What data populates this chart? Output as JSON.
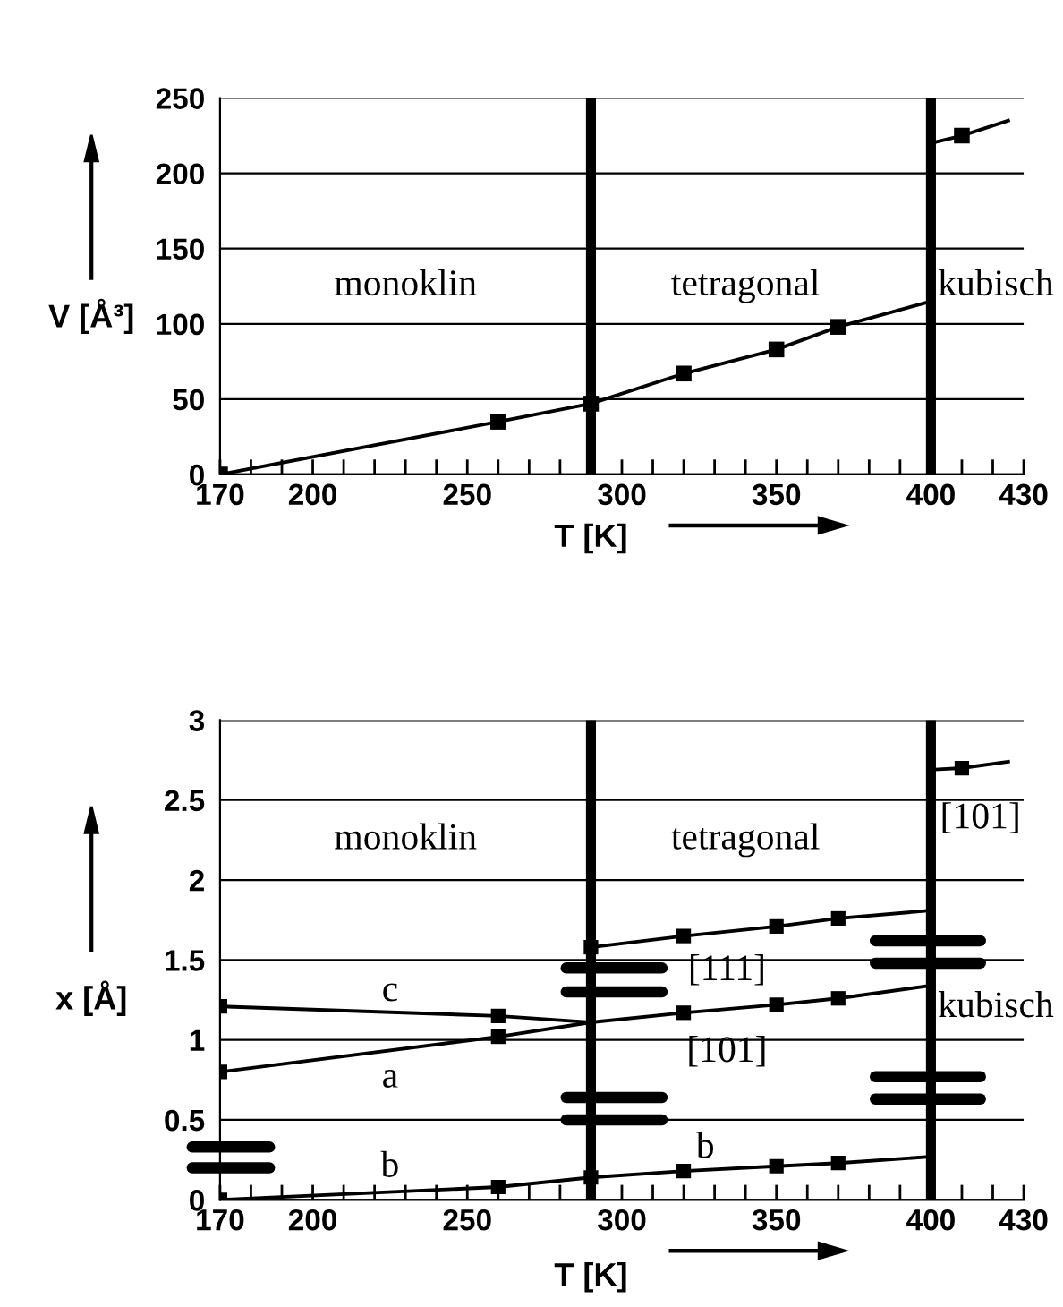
{
  "chart_data": [
    {
      "type": "line",
      "xlabel": "T [K]",
      "ylabel": "V [Å³]",
      "xlim": [
        170,
        430
      ],
      "ylim": [
        0,
        250
      ],
      "xticks": [
        170,
        {
          "value": 180,
          "label": null
        },
        {
          "value": 190,
          "label": null
        },
        200,
        {
          "value": 210,
          "label": null
        },
        {
          "value": 220,
          "label": null
        },
        {
          "value": 230,
          "label": null
        },
        {
          "value": 240,
          "label": null
        },
        250,
        {
          "value": 260,
          "label": null
        },
        {
          "value": 270,
          "label": null
        },
        {
          "value": 280,
          "label": null
        },
        {
          "value": 290,
          "label": null
        },
        300,
        {
          "value": 310,
          "label": null
        },
        {
          "value": 320,
          "label": null
        },
        {
          "value": 330,
          "label": null
        },
        {
          "value": 340,
          "label": null
        },
        350,
        {
          "value": 360,
          "label": null
        },
        {
          "value": 370,
          "label": null
        },
        {
          "value": 380,
          "label": null
        },
        {
          "value": 390,
          "label": null
        },
        400,
        {
          "value": 410,
          "label": null
        },
        {
          "value": 420,
          "label": null
        },
        430
      ],
      "yticks": [
        0,
        50,
        100,
        150,
        200,
        250
      ],
      "grid": "y",
      "marker": "square",
      "series": [
        {
          "marker": "none",
          "color": "#000000",
          "x": [
            170,
            260,
            290,
            320,
            350,
            370,
            400
          ],
          "values": [
            0,
            35,
            47,
            67,
            83,
            98,
            115
          ]
        },
        {
          "marker": "none",
          "color": "#000000",
          "x": [
            400,
            410,
            425
          ],
          "values": [
            220,
            225,
            235
          ]
        },
        {
          "type": "scatter",
          "color": "#000000",
          "x": [
            170,
            260,
            290,
            320,
            350,
            370,
            410
          ],
          "values": [
            0,
            35,
            47,
            67,
            83,
            98,
            225
          ]
        }
      ],
      "ref_lines": [
        {
          "axis": "x",
          "value": 290,
          "color": "#000000"
        },
        {
          "axis": "x",
          "value": 400,
          "color": "#000000"
        }
      ],
      "annotations": [
        "monoklin",
        "tetragonal",
        "kubisch"
      ]
    },
    {
      "type": "line",
      "xlabel": "T [K]",
      "ylabel": "x [Å]",
      "xlim": [
        170,
        430
      ],
      "ylim": [
        0,
        3
      ],
      "xticks": [
        170,
        {
          "value": 180,
          "label": null
        },
        {
          "value": 190,
          "label": null
        },
        200,
        {
          "value": 210,
          "label": null
        },
        {
          "value": 220,
          "label": null
        },
        {
          "value": 230,
          "label": null
        },
        {
          "value": 240,
          "label": null
        },
        250,
        {
          "value": 260,
          "label": null
        },
        {
          "value": 270,
          "label": null
        },
        {
          "value": 280,
          "label": null
        },
        {
          "value": 290,
          "label": null
        },
        300,
        {
          "value": 310,
          "label": null
        },
        {
          "value": 320,
          "label": null
        },
        {
          "value": 330,
          "label": null
        },
        {
          "value": 340,
          "label": null
        },
        350,
        {
          "value": 360,
          "label": null
        },
        {
          "value": 370,
          "label": null
        },
        {
          "value": 380,
          "label": null
        },
        {
          "value": 390,
          "label": null
        },
        400,
        {
          "value": 410,
          "label": null
        },
        {
          "value": 420,
          "label": null
        },
        430
      ],
      "yticks": [
        0,
        0.5,
        1,
        1.5,
        2,
        2.5,
        3
      ],
      "grid": "y",
      "marker": "square",
      "series": [
        {
          "marker": "none",
          "color": "#000000",
          "x": [
            170,
            260,
            290
          ],
          "values": [
            1.21,
            1.15,
            1.11
          ]
        },
        {
          "marker": "none",
          "color": "#000000",
          "x": [
            170,
            260,
            290,
            320,
            350,
            370,
            400
          ],
          "values": [
            0.8,
            1.02,
            1.11,
            1.17,
            1.22,
            1.26,
            1.34
          ]
        },
        {
          "marker": "none",
          "color": "#000000",
          "x": [
            290,
            320,
            350,
            370,
            400
          ],
          "values": [
            1.58,
            1.65,
            1.71,
            1.76,
            1.81
          ]
        },
        {
          "marker": "none",
          "color": "#000000",
          "x": [
            170,
            260,
            290,
            320,
            350,
            370,
            400
          ],
          "values": [
            0,
            0.08,
            0.14,
            0.18,
            0.21,
            0.23,
            0.27
          ]
        },
        {
          "marker": "none",
          "color": "#000000",
          "x": [
            400,
            410,
            425
          ],
          "values": [
            2.69,
            2.7,
            2.74
          ]
        },
        {
          "type": "scatter",
          "color": "#000000",
          "x": [
            170,
            260,
            170,
            260,
            320,
            350,
            370,
            290,
            320,
            350,
            370,
            170,
            260,
            290,
            320,
            350,
            370,
            410
          ],
          "values": [
            1.21,
            1.15,
            0.8,
            1.02,
            1.17,
            1.22,
            1.26,
            1.58,
            1.65,
            1.71,
            1.76,
            0,
            0.08,
            0.14,
            0.18,
            0.21,
            0.23,
            2.7
          ]
        }
      ],
      "ref_lines": [
        {
          "axis": "x",
          "value": 290,
          "color": "#000000"
        },
        {
          "axis": "x",
          "value": 400,
          "color": "#000000"
        }
      ],
      "annotations": [
        "monoklin",
        "tetragonal",
        "kubisch",
        "c",
        "a",
        "b",
        "b",
        "[111]",
        "[101]",
        "[101]"
      ]
    }
  ]
}
